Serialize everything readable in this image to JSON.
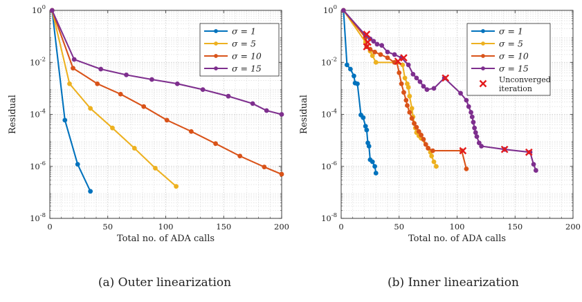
{
  "chart_data": [
    {
      "type": "line",
      "caption": "(a) Outer linearization",
      "xlabel": "Total no. of ADA calls",
      "ylabel": "Residual",
      "xlim": [
        0,
        200
      ],
      "ylim": [
        1e-08,
        1
      ],
      "yscale": "log",
      "grid": true,
      "legend_placement": "top-right",
      "xticks": [
        "0",
        "50",
        "100",
        "150",
        "200"
      ],
      "yticks": [
        {
          "base": "10",
          "exp": "0"
        },
        {
          "base": "10",
          "exp": "-2"
        },
        {
          "base": "10",
          "exp": "-4"
        },
        {
          "base": "10",
          "exp": "-6"
        },
        {
          "base": "10",
          "exp": "-8"
        }
      ],
      "series": [
        {
          "name": "σ = 1",
          "color": "#0072BD",
          "points": [
            [
              2,
              1
            ],
            [
              13,
              6e-05
            ],
            [
              24,
              1.2e-06
            ],
            [
              35,
              1.1e-07
            ]
          ]
        },
        {
          "name": "σ = 5",
          "color": "#EDB120",
          "points": [
            [
              2,
              1
            ],
            [
              17,
              0.0015
            ],
            [
              35,
              0.00017
            ],
            [
              54,
              3e-05
            ],
            [
              73,
              5e-06
            ],
            [
              91,
              8.5e-07
            ],
            [
              109,
              1.7e-07
            ]
          ]
        },
        {
          "name": "σ = 10",
          "color": "#D95319",
          "points": [
            [
              2,
              1
            ],
            [
              20,
              0.006
            ],
            [
              41,
              0.0015
            ],
            [
              61,
              0.0006
            ],
            [
              81,
              0.0002
            ],
            [
              101,
              6e-05
            ],
            [
              122,
              2.2e-05
            ],
            [
              143,
              7.5e-06
            ],
            [
              164,
              2.5e-06
            ],
            [
              185,
              9.5e-07
            ],
            [
              200,
              5e-07
            ]
          ]
        },
        {
          "name": "σ = 15",
          "color": "#7E2F8E",
          "points": [
            [
              2,
              1
            ],
            [
              21,
              0.013
            ],
            [
              44,
              0.0055
            ],
            [
              66,
              0.0033
            ],
            [
              88,
              0.0022
            ],
            [
              110,
              0.0015
            ],
            [
              132,
              0.0009
            ],
            [
              154,
              0.0005
            ],
            [
              175,
              0.00026
            ],
            [
              187,
              0.00014
            ],
            [
              200,
              0.0001
            ]
          ]
        }
      ]
    },
    {
      "type": "line",
      "caption": "(b) Inner linearization",
      "xlabel": "Total no. of ADA calls",
      "ylabel": "Residual",
      "xlim": [
        0,
        200
      ],
      "ylim": [
        1e-08,
        1
      ],
      "yscale": "log",
      "grid": true,
      "legend_placement": "top-right",
      "xticks": [
        "0",
        "50",
        "100",
        "150",
        "200"
      ],
      "yticks": [
        {
          "base": "10",
          "exp": "0"
        },
        {
          "base": "10",
          "exp": "-2"
        },
        {
          "base": "10",
          "exp": "-4"
        },
        {
          "base": "10",
          "exp": "-6"
        },
        {
          "base": "10",
          "exp": "-8"
        }
      ],
      "unconverged_label": "Unconverged iteration",
      "unconverged_color": "#E31A1C",
      "series": [
        {
          "name": "σ = 1",
          "color": "#0072BD",
          "points": [
            [
              2,
              1
            ],
            [
              5,
              0.008
            ],
            [
              8,
              0.0055
            ],
            [
              11,
              0.003
            ],
            [
              12,
              0.0016
            ],
            [
              14,
              0.0015
            ],
            [
              17,
              9.5e-05
            ],
            [
              19,
              7.5e-05
            ],
            [
              21,
              3.5e-05
            ],
            [
              22,
              2.5e-05
            ],
            [
              23,
              8e-06
            ],
            [
              24,
              6e-06
            ],
            [
              25,
              1.8e-06
            ],
            [
              27,
              1.5e-06
            ],
            [
              29,
              1e-06
            ],
            [
              30,
              5.5e-07
            ]
          ]
        },
        {
          "name": "σ = 5",
          "color": "#EDB120",
          "points": [
            [
              2,
              1
            ],
            [
              21,
              0.06
            ],
            [
              25,
              0.027
            ],
            [
              27,
              0.018
            ],
            [
              30,
              0.01
            ],
            [
              46,
              0.01
            ],
            [
              53,
              0.008
            ],
            [
              55,
              0.0025
            ],
            [
              57,
              0.0015
            ],
            [
              58,
              0.0011
            ],
            [
              59,
              0.0005
            ],
            [
              61,
              0.00017
            ],
            [
              62,
              8e-05
            ],
            [
              63,
              4.5e-05
            ],
            [
              64,
              3e-05
            ],
            [
              65,
              2e-05
            ],
            [
              67,
              1.5e-05
            ],
            [
              69,
              1.2e-05
            ],
            [
              75,
              5e-06
            ],
            [
              77,
              3.5e-06
            ],
            [
              78,
              2.5e-06
            ],
            [
              80,
              1.5e-06
            ],
            [
              82,
              1e-06
            ]
          ]
        },
        {
          "name": "σ = 10",
          "color": "#D95319",
          "points": [
            [
              2,
              1
            ],
            [
              21,
              0.09
            ],
            [
              22,
              0.04
            ],
            [
              25,
              0.032
            ],
            [
              29,
              0.025
            ],
            [
              34,
              0.02
            ],
            [
              40,
              0.015
            ],
            [
              46,
              0.01
            ],
            [
              48,
              0.01
            ],
            [
              50,
              0.004
            ],
            [
              52,
              0.0015
            ],
            [
              54,
              0.0007
            ],
            [
              56,
              0.00035
            ],
            [
              57,
              0.00022
            ],
            [
              59,
              0.00012
            ],
            [
              61,
              7e-05
            ],
            [
              63,
              4.5e-05
            ],
            [
              65,
              3.2e-05
            ],
            [
              67,
              2.2e-05
            ],
            [
              69,
              1.6e-05
            ],
            [
              71,
              1.1e-05
            ],
            [
              73,
              7e-06
            ],
            [
              75,
              5e-06
            ],
            [
              79,
              4e-06
            ],
            [
              104,
              4e-06
            ],
            [
              108,
              8e-07
            ]
          ]
        },
        {
          "name": "σ = 15",
          "color": "#7E2F8E",
          "points": [
            [
              2,
              1
            ],
            [
              21,
              0.11
            ],
            [
              25,
              0.08
            ],
            [
              28,
              0.065
            ],
            [
              31,
              0.05
            ],
            [
              35,
              0.045
            ],
            [
              40,
              0.025
            ],
            [
              46,
              0.02
            ],
            [
              52,
              0.015
            ],
            [
              58,
              0.008
            ],
            [
              62,
              0.0035
            ],
            [
              65,
              0.0025
            ],
            [
              68,
              0.0018
            ],
            [
              71,
              0.0012
            ],
            [
              74,
              0.0009
            ],
            [
              80,
              0.001
            ],
            [
              89,
              0.0025
            ],
            [
              103,
              0.00065
            ],
            [
              108,
              0.00035
            ],
            [
              110,
              0.0002
            ],
            [
              112,
              0.00012
            ],
            [
              113,
              8e-05
            ],
            [
              114,
              5e-05
            ],
            [
              115,
              3e-05
            ],
            [
              116,
              2e-05
            ],
            [
              117,
              1.4e-05
            ],
            [
              119,
              8e-06
            ],
            [
              121,
              6e-06
            ],
            [
              141,
              4.5e-06
            ],
            [
              163,
              3.5e-06
            ],
            [
              166,
              1.2e-06
            ],
            [
              168,
              7e-07
            ]
          ]
        }
      ],
      "unconverged_points": [
        [
          22,
          0.12
        ],
        [
          22,
          0.04
        ],
        [
          23,
          0.06
        ],
        [
          49,
          0.011
        ],
        [
          54,
          0.015
        ],
        [
          90,
          0.0025
        ],
        [
          105,
          4e-06
        ],
        [
          141,
          4.5e-06
        ],
        [
          162,
          3.5e-06
        ]
      ]
    }
  ]
}
